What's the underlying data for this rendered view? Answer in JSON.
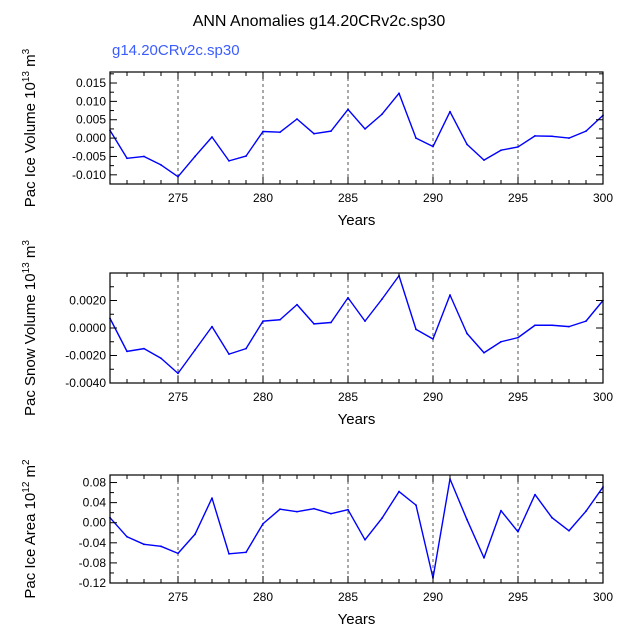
{
  "figure": {
    "title": "ANN Anomalies g14.20CRv2c.sp30",
    "case_label": "g14.20CRv2c.sp30"
  },
  "colors": {
    "line": "#0000ff",
    "axis": "#000000",
    "reference_lines": "#555555"
  },
  "chart_data": [
    {
      "type": "line",
      "xlabel": "Years",
      "ylabel": "Pac Ice Volume",
      "ylabel_unit_base": "10",
      "ylabel_unit_exp": "13",
      "ylabel_unit_name": "m",
      "ylabel_unit_pow": "3",
      "xlim": [
        271,
        300
      ],
      "ylim": [
        -0.0125,
        0.018
      ],
      "yticks": [
        -0.01,
        -0.005,
        0.0,
        0.005,
        0.01,
        0.015
      ],
      "ytick_labels": [
        "-0.010",
        "-0.005",
        "0.000",
        "0.005",
        "0.010",
        "0.015"
      ],
      "xticks": [
        275,
        280,
        285,
        290,
        295,
        300
      ],
      "xtick_labels": [
        "275",
        "280",
        "285",
        "290",
        "295",
        "300"
      ],
      "vlines": [
        275,
        280,
        285,
        290,
        295
      ],
      "grid": false,
      "x": [
        271,
        272,
        273,
        274,
        275,
        276,
        277,
        278,
        279,
        280,
        281,
        282,
        283,
        284,
        285,
        286,
        287,
        288,
        289,
        290,
        291,
        292,
        293,
        294,
        295,
        296,
        297,
        298,
        299,
        300
      ],
      "series": [
        {
          "values": [
            0.0021,
            -0.0055,
            -0.005,
            -0.0073,
            -0.0105,
            -0.005,
            0.0003,
            -0.0062,
            -0.0049,
            0.0018,
            0.0016,
            0.0052,
            0.0012,
            0.0019,
            0.0078,
            0.0025,
            0.0065,
            0.0122,
            0.0,
            -0.0023,
            0.0072,
            -0.0017,
            -0.006,
            -0.0033,
            -0.0024,
            0.0006,
            0.0005,
            0.0,
            0.0019,
            0.0062
          ]
        }
      ]
    },
    {
      "type": "line",
      "xlabel": "Years",
      "ylabel": "Pac Snow Volume",
      "ylabel_unit_base": "10",
      "ylabel_unit_exp": "13",
      "ylabel_unit_name": "m",
      "ylabel_unit_pow": "3",
      "xlim": [
        271,
        300
      ],
      "ylim": [
        -0.004,
        0.004
      ],
      "yticks": [
        -0.004,
        -0.002,
        0.0,
        0.002
      ],
      "ytick_labels": [
        "-0.0040",
        "-0.0020",
        "0.0000",
        "0.0020"
      ],
      "xticks": [
        275,
        280,
        285,
        290,
        295,
        300
      ],
      "xtick_labels": [
        "275",
        "280",
        "285",
        "290",
        "295",
        "300"
      ],
      "vlines": [
        275,
        280,
        285,
        290,
        295
      ],
      "grid": false,
      "x": [
        271,
        272,
        273,
        274,
        275,
        276,
        277,
        278,
        279,
        280,
        281,
        282,
        283,
        284,
        285,
        286,
        287,
        288,
        289,
        290,
        291,
        292,
        293,
        294,
        295,
        296,
        297,
        298,
        299,
        300
      ],
      "series": [
        {
          "values": [
            0.0007,
            -0.0017,
            -0.0015,
            -0.0022,
            -0.0033,
            -0.0016,
            0.0001,
            -0.0019,
            -0.0015,
            0.0005,
            0.0006,
            0.0017,
            0.0003,
            0.0004,
            0.0022,
            0.0005,
            0.0021,
            0.0038,
            -0.0001,
            -0.0008,
            0.0024,
            -0.0004,
            -0.0018,
            -0.001,
            -0.0007,
            0.0002,
            0.0002,
            0.0001,
            0.0005,
            0.002
          ]
        }
      ]
    },
    {
      "type": "line",
      "xlabel": "Years",
      "ylabel": "Pac Ice Area",
      "ylabel_unit_base": "10",
      "ylabel_unit_exp": "12",
      "ylabel_unit_name": "m",
      "ylabel_unit_pow": "2",
      "xlim": [
        271,
        300
      ],
      "ylim": [
        -0.12,
        0.095
      ],
      "yticks": [
        -0.12,
        -0.08,
        -0.04,
        0.0,
        0.04,
        0.08
      ],
      "ytick_labels": [
        "-0.12",
        "-0.08",
        "-0.04",
        "0.00",
        "0.04",
        "0.08"
      ],
      "xticks": [
        275,
        280,
        285,
        290,
        295,
        300
      ],
      "xtick_labels": [
        "275",
        "280",
        "285",
        "290",
        "295",
        "300"
      ],
      "vlines": [
        275,
        280,
        285,
        290,
        295
      ],
      "grid": false,
      "x": [
        271,
        272,
        273,
        274,
        275,
        276,
        277,
        278,
        279,
        280,
        281,
        282,
        283,
        284,
        285,
        286,
        287,
        288,
        289,
        290,
        291,
        292,
        293,
        294,
        295,
        296,
        297,
        298,
        299,
        300
      ],
      "series": [
        {
          "values": [
            0.01,
            -0.028,
            -0.043,
            -0.047,
            -0.061,
            -0.023,
            0.049,
            -0.062,
            -0.059,
            -0.002,
            0.027,
            0.022,
            0.028,
            0.018,
            0.026,
            -0.034,
            0.009,
            0.062,
            0.035,
            -0.11,
            0.087,
            0.006,
            -0.07,
            0.024,
            -0.018,
            0.056,
            0.01,
            -0.016,
            0.023,
            0.071
          ]
        }
      ]
    }
  ]
}
